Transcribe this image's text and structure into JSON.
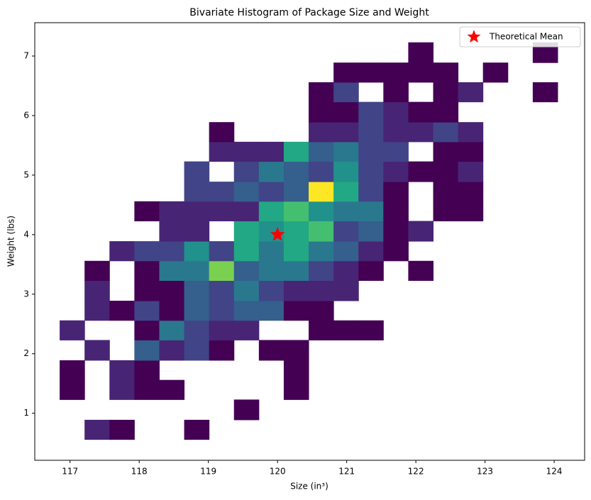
{
  "chart_data": {
    "type": "hist2d",
    "title": "Bivariate Histogram of Package Size and Weight",
    "x_label": "Size (in³)",
    "y_label": "Weight (lbs)",
    "colormap": "viridis",
    "xlim": [
      116.49,
      124.44
    ],
    "ylim": [
      0.21,
      7.56
    ],
    "xticks": [
      117,
      118,
      119,
      120,
      121,
      122,
      123,
      124
    ],
    "yticks": [
      1,
      2,
      3,
      4,
      5,
      6,
      7
    ],
    "x_bins": [
      116.85,
      117.21,
      117.57,
      117.93,
      118.29,
      118.65,
      119.01,
      119.37,
      119.73,
      120.09,
      120.45,
      120.81,
      121.17,
      121.53,
      121.89,
      122.25,
      122.61,
      122.97,
      123.33,
      123.69,
      124.05
    ],
    "y_bins": [
      0.56,
      0.89,
      1.23,
      1.56,
      1.89,
      2.23,
      2.56,
      2.89,
      3.23,
      3.56,
      3.89,
      4.23,
      4.56,
      4.89,
      5.23,
      5.56,
      5.89,
      6.23,
      6.56,
      6.89,
      7.23
    ],
    "counts": [
      [
        null,
        2,
        1,
        null,
        null,
        1,
        null,
        null,
        null,
        null,
        null,
        null,
        null,
        null,
        null,
        null,
        null,
        null,
        null,
        null
      ],
      [
        null,
        null,
        null,
        null,
        null,
        null,
        null,
        1,
        null,
        null,
        null,
        null,
        null,
        null,
        null,
        null,
        null,
        null,
        null,
        null
      ],
      [
        1,
        null,
        2,
        1,
        1,
        null,
        null,
        null,
        null,
        1,
        null,
        null,
        null,
        null,
        null,
        null,
        null,
        null,
        null,
        null
      ],
      [
        1,
        null,
        2,
        1,
        null,
        null,
        null,
        null,
        null,
        1,
        null,
        null,
        null,
        null,
        null,
        null,
        null,
        null,
        null,
        null
      ],
      [
        null,
        2,
        null,
        4,
        2,
        3,
        1,
        null,
        1,
        1,
        null,
        null,
        null,
        null,
        null,
        null,
        null,
        null,
        null,
        null
      ],
      [
        2,
        null,
        null,
        1,
        5,
        3,
        2,
        2,
        null,
        null,
        1,
        1,
        1,
        null,
        null,
        null,
        null,
        null,
        null,
        null
      ],
      [
        null,
        2,
        1,
        3,
        1,
        4,
        3,
        4,
        4,
        1,
        1,
        null,
        null,
        null,
        null,
        null,
        null,
        null,
        null,
        null
      ],
      [
        null,
        2,
        null,
        1,
        1,
        4,
        3,
        5,
        3,
        2,
        2,
        2,
        null,
        null,
        null,
        null,
        null,
        null,
        null,
        null
      ],
      [
        null,
        1,
        null,
        1,
        5,
        5,
        9,
        4,
        5,
        5,
        3,
        2,
        1,
        null,
        1,
        null,
        null,
        null,
        null,
        null
      ],
      [
        null,
        null,
        2,
        3,
        3,
        6,
        3,
        7,
        5,
        7,
        5,
        4,
        2,
        1,
        null,
        null,
        null,
        null,
        null,
        null
      ],
      [
        null,
        null,
        null,
        null,
        2,
        2,
        null,
        7,
        6,
        7,
        8,
        3,
        4,
        1,
        2,
        null,
        null,
        null,
        null,
        null
      ],
      [
        null,
        null,
        null,
        1,
        2,
        2,
        2,
        2,
        7,
        8,
        6,
        5,
        5,
        1,
        null,
        1,
        1,
        null,
        null,
        null
      ],
      [
        null,
        null,
        null,
        null,
        null,
        3,
        3,
        4,
        3,
        4,
        11,
        7,
        3,
        1,
        null,
        1,
        1,
        null,
        null,
        null
      ],
      [
        null,
        null,
        null,
        null,
        null,
        3,
        null,
        3,
        5,
        4,
        3,
        6,
        3,
        2,
        1,
        1,
        2,
        null,
        null,
        null
      ],
      [
        null,
        null,
        null,
        null,
        null,
        null,
        2,
        2,
        2,
        7,
        4,
        5,
        3,
        3,
        null,
        1,
        1,
        null,
        null,
        null
      ],
      [
        null,
        null,
        null,
        null,
        null,
        null,
        1,
        null,
        null,
        null,
        2,
        2,
        3,
        2,
        2,
        3,
        2,
        null,
        null,
        null
      ],
      [
        null,
        null,
        null,
        null,
        null,
        null,
        null,
        null,
        null,
        null,
        1,
        1,
        3,
        2,
        1,
        1,
        null,
        null,
        null,
        null
      ],
      [
        null,
        null,
        null,
        null,
        null,
        null,
        null,
        null,
        null,
        null,
        1,
        3,
        null,
        1,
        null,
        1,
        2,
        null,
        null,
        1
      ],
      [
        null,
        null,
        null,
        null,
        null,
        null,
        null,
        null,
        null,
        null,
        null,
        1,
        1,
        1,
        1,
        1,
        null,
        1,
        null,
        null
      ],
      [
        null,
        null,
        null,
        null,
        null,
        null,
        null,
        null,
        null,
        null,
        null,
        null,
        null,
        null,
        1,
        null,
        null,
        null,
        null,
        1
      ]
    ],
    "series": [
      {
        "name": "Theoretical Mean",
        "x": [
          120
        ],
        "y": [
          4
        ],
        "color": "#ff0000",
        "marker": "star"
      }
    ],
    "legend": "upper right"
  }
}
